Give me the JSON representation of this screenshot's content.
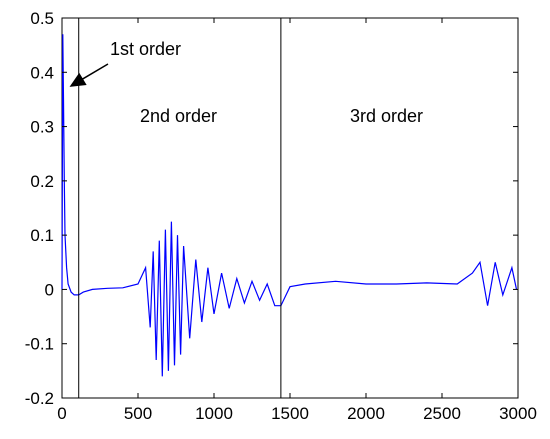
{
  "chart_data": {
    "type": "line",
    "title": "",
    "xlabel": "",
    "ylabel": "",
    "xlim": [
      0,
      3000
    ],
    "ylim": [
      -0.2,
      0.5
    ],
    "x_ticks": [
      0,
      500,
      1000,
      1500,
      2000,
      2500,
      3000
    ],
    "y_ticks": [
      -0.2,
      -0.1,
      0,
      0.1,
      0.2,
      0.3,
      0.4,
      0.5
    ],
    "x_tick_labels": [
      "0",
      "500",
      "1000",
      "1500",
      "2000",
      "2500",
      "3000"
    ],
    "y_tick_labels": [
      "-0.2",
      "-0.1",
      "0",
      "0.1",
      "0.2",
      "0.3",
      "0.4",
      "0.5"
    ],
    "grid": false,
    "series_color": "#0000ff",
    "vlines": [
      110,
      1440
    ],
    "annotations": {
      "first": "1st order",
      "second": "2nd order",
      "third": "3rd order"
    },
    "series": [
      {
        "points": [
          [
            0,
            0.0
          ],
          [
            5,
            0.47
          ],
          [
            10,
            0.35
          ],
          [
            15,
            0.2
          ],
          [
            20,
            0.1
          ],
          [
            30,
            0.04
          ],
          [
            40,
            0.01
          ],
          [
            60,
            -0.005
          ],
          [
            80,
            -0.01
          ],
          [
            110,
            -0.01
          ],
          [
            140,
            -0.005
          ],
          [
            200,
            0.0
          ],
          [
            300,
            0.002
          ],
          [
            400,
            0.003
          ],
          [
            500,
            0.01
          ],
          [
            550,
            0.04
          ],
          [
            580,
            -0.07
          ],
          [
            600,
            0.07
          ],
          [
            620,
            -0.13
          ],
          [
            640,
            0.09
          ],
          [
            660,
            -0.16
          ],
          [
            680,
            0.11
          ],
          [
            700,
            -0.15
          ],
          [
            720,
            0.125
          ],
          [
            740,
            -0.14
          ],
          [
            760,
            0.1
          ],
          [
            780,
            -0.12
          ],
          [
            800,
            0.08
          ],
          [
            840,
            -0.09
          ],
          [
            880,
            0.055
          ],
          [
            920,
            -0.06
          ],
          [
            960,
            0.04
          ],
          [
            1000,
            -0.045
          ],
          [
            1050,
            0.03
          ],
          [
            1100,
            -0.035
          ],
          [
            1150,
            0.02
          ],
          [
            1200,
            -0.025
          ],
          [
            1250,
            0.015
          ],
          [
            1300,
            -0.02
          ],
          [
            1350,
            0.01
          ],
          [
            1400,
            -0.03
          ],
          [
            1440,
            -0.03
          ],
          [
            1500,
            0.005
          ],
          [
            1600,
            0.01
          ],
          [
            1800,
            0.015
          ],
          [
            2000,
            0.01
          ],
          [
            2200,
            0.01
          ],
          [
            2400,
            0.012
          ],
          [
            2600,
            0.01
          ],
          [
            2700,
            0.03
          ],
          [
            2750,
            0.05
          ],
          [
            2800,
            -0.03
          ],
          [
            2850,
            0.05
          ],
          [
            2900,
            -0.01
          ],
          [
            2960,
            0.04
          ],
          [
            2990,
            0.0
          ]
        ]
      }
    ]
  }
}
